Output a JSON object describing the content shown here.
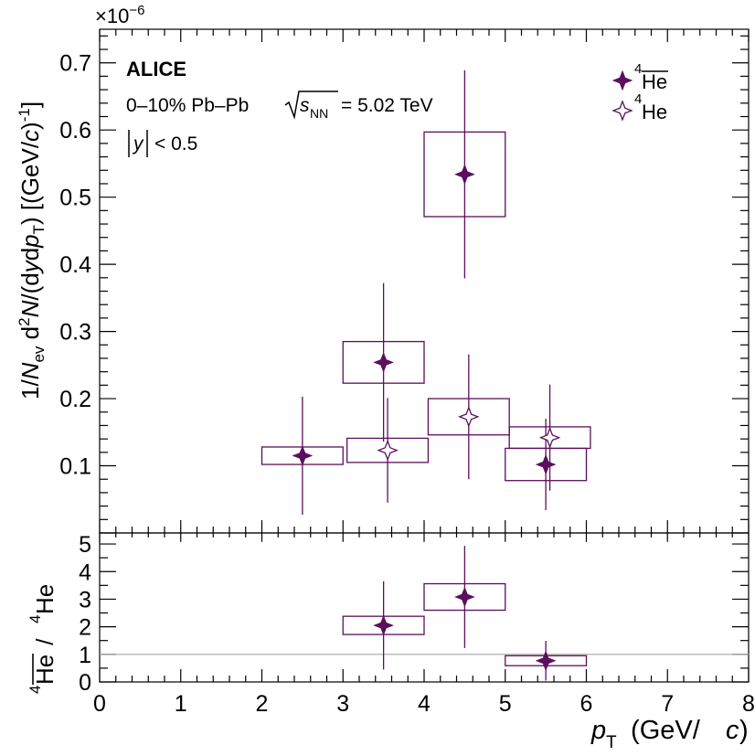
{
  "figure": {
    "experiment": "ALICE",
    "collision_prefix": "0–10% Pb–Pb",
    "energy_symbol": "s",
    "energy_subscript": "NN",
    "energy_value": "= 5.02 TeV",
    "rapidity_symbol": "y",
    "rapidity_cut": "< 0.5",
    "exponent_base": "×10",
    "exponent_power": "−6"
  },
  "colors": {
    "series": "#5c0f5c",
    "reference_line": "#a6a6a6",
    "axes": "#000000"
  },
  "chart_data": [
    {
      "type": "scatter",
      "panel": "spectra",
      "ylabel": "1/N_ev d²N/(dy dp_T) [(GeV/c)^-1]",
      "y_multiplier": "×10^-6",
      "xlim": [
        0,
        8
      ],
      "ylim": [
        0,
        0.75
      ],
      "x_ticks": [],
      "y_ticks": [
        "0.1",
        "0.2",
        "0.3",
        "0.4",
        "0.5",
        "0.6",
        "0.7"
      ],
      "grid": false,
      "legend_position": "top-right",
      "series": [
        {
          "name": "4He-bar",
          "legend_mass_number": "4",
          "legend_symbol": "He",
          "legend_overline": true,
          "marker": "filled-star",
          "x": [
            2.5,
            3.5,
            4.5,
            5.5
          ],
          "y": [
            0.115,
            0.254,
            0.534,
            0.102
          ],
          "stat_err": [
            0.088,
            0.118,
            0.155,
            0.068
          ],
          "syst_err": [
            0.013,
            0.031,
            0.063,
            0.024
          ]
        },
        {
          "name": "4He",
          "legend_mass_number": "4",
          "legend_symbol": "He",
          "legend_overline": false,
          "marker": "open-star",
          "x": [
            3.5,
            4.5,
            5.5
          ],
          "y": [
            0.123,
            0.173,
            0.142
          ],
          "stat_err": [
            0.078,
            0.093,
            0.079
          ],
          "syst_err": [
            0.018,
            0.027,
            0.016
          ]
        }
      ]
    },
    {
      "type": "scatter",
      "panel": "ratio",
      "ylabel_numerator_mass": "4",
      "ylabel_numerator_symbol": "He",
      "ylabel_separator": " / ",
      "ylabel_denominator_mass": "4",
      "ylabel_denominator_symbol": "He",
      "xlabel_symbol": "p",
      "xlabel_subscript": "T",
      "xlabel_unit_open": " (GeV/",
      "xlabel_unit_var": "c",
      "xlabel_unit_close": ")",
      "xlim": [
        0,
        8
      ],
      "ylim": [
        0,
        5.4
      ],
      "x_ticks": [
        "0",
        "1",
        "2",
        "3",
        "4",
        "5",
        "6",
        "7",
        "8"
      ],
      "y_ticks": [
        "0",
        "1",
        "2",
        "3",
        "4",
        "5"
      ],
      "reference_line": 1,
      "grid": false,
      "series": [
        {
          "name": "ratio",
          "marker": "filled-star",
          "x": [
            3.5,
            4.5,
            5.5
          ],
          "y": [
            2.05,
            3.08,
            0.77
          ],
          "stat_err": [
            1.6,
            1.85,
            0.72
          ],
          "syst_err": [
            0.33,
            0.48,
            0.18
          ]
        }
      ]
    }
  ]
}
